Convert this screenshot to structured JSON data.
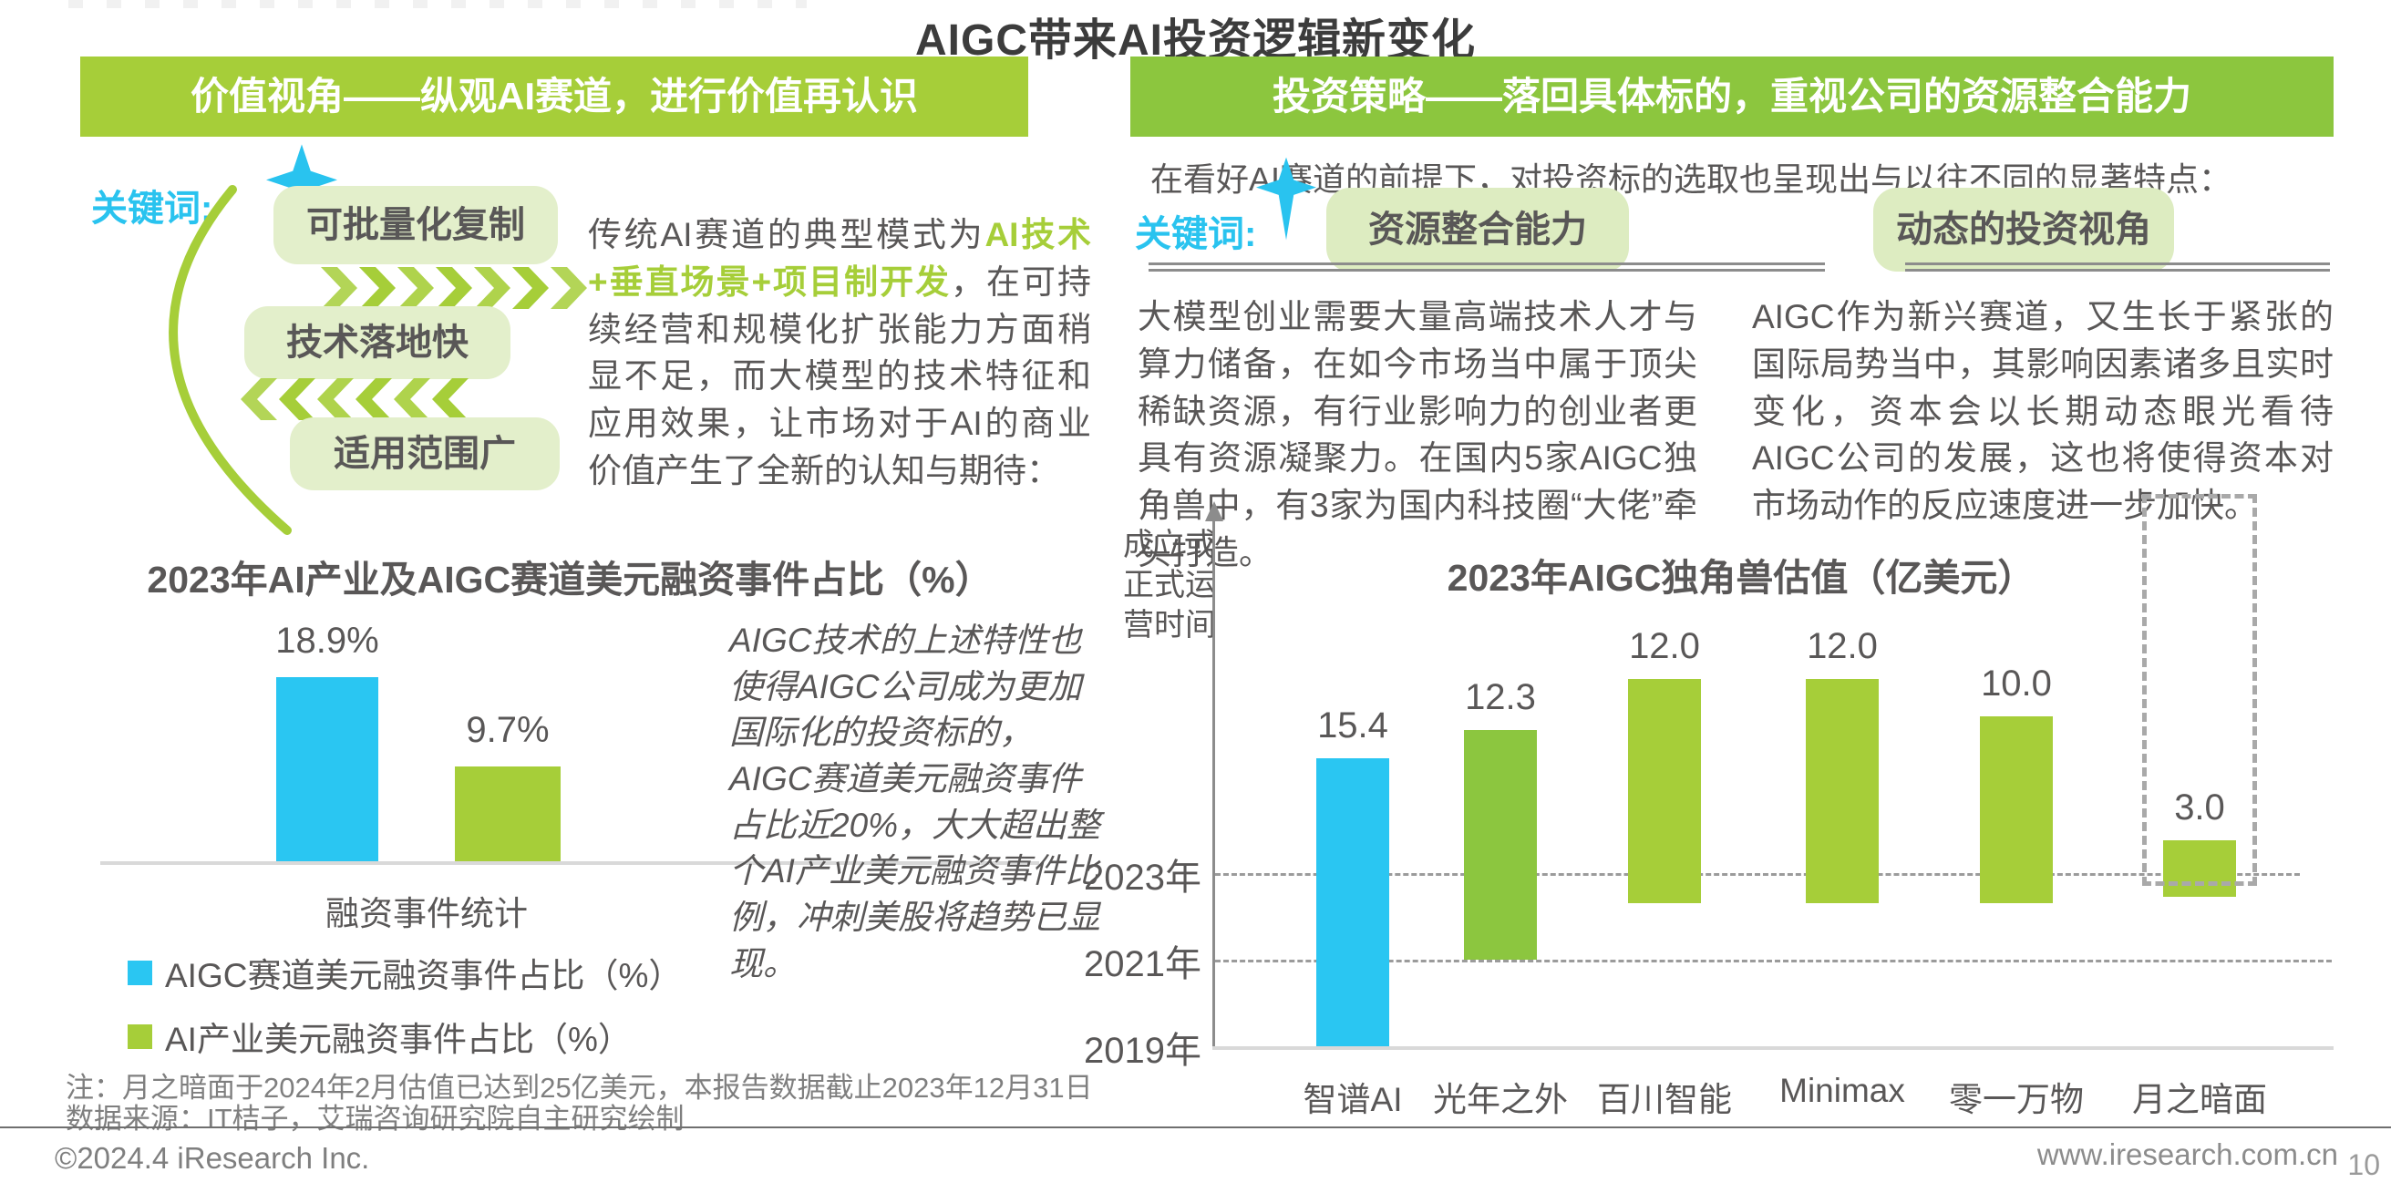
{
  "page": {
    "title": "AIGC带来AI投资逻辑新变化",
    "footer": {
      "note1": "注：月之暗面于2024年2月估值已达到25亿美元，本报告数据截止2023年12月31日",
      "note2": "数据来源：IT桔子，艾瑞咨询研究院自主研究绘制",
      "copyright": "©2024.4 iResearch Inc.",
      "website": "www.iresearch.com.cn",
      "page_number": "10"
    }
  },
  "left": {
    "header": "价值视角——纵观AI赛道，进行价值再认识",
    "keyword_label": "关键词:",
    "keywords": [
      "可批量化复制",
      "技术落地快",
      "适用范围广"
    ],
    "paragraph_prefix": "传统AI赛道的典型模式为",
    "paragraph_highlight": "AI技术+垂直场景+项目制开发",
    "paragraph_suffix": "，在可持续经营和规模化扩张能力方面稍显不足，而大模型的技术特征和应用效果，让市场对于AI的商业价值产生了全新的认知与期待：",
    "italic_note": "AIGC技术的上述特性也使得AIGC公司成为更加国际化的投资标的，AIGC赛道美元融资事件占比近20%，大大超出整个AI产业美元融资事件比例，冲刺美股将趋势已显现。"
  },
  "right": {
    "header": "投资策略——落回具体标的，重视公司的资源整合能力",
    "subtitle": "在看好AI赛道的前提下，对投资标的选取也呈现出与以往不同的显著特点：",
    "keyword_label": "关键词:",
    "keywords": [
      "资源整合能力",
      "动态的投资视角"
    ],
    "paragraph1": "大模型创业需要大量高端技术人才与算力储备，在如今市场当中属于顶尖稀缺资源，有行业影响力的创业者更具有资源凝聚力。在国内5家AIGC独角兽中，有3家为国内科技圈“大佬”牵头打造。",
    "paragraph2": "AIGC作为新兴赛道，又生长于紧张的国际局势当中，其影响因素诸多且实时变化，资本会以长期动态眼光看待AIGC公司的发展，这也将使得资本对市场动作的反应速度进一步加快。"
  },
  "chart_data": [
    {
      "type": "bar",
      "title": "2023年AI产业及AIGC赛道美元融资事件占比（%）",
      "categories": [
        "AIGC赛道美元融资事件占比（%）",
        "AI产业美元融资事件占比（%）"
      ],
      "values": [
        18.9,
        9.7
      ],
      "value_labels": [
        "18.9%",
        "9.7%"
      ],
      "bar_colors": [
        "#2ac6f2",
        "#a6ce39"
      ],
      "xlabel": "融资事件统计",
      "ylim": [
        0,
        25
      ],
      "grid": false,
      "legend_position": "bottom-left"
    },
    {
      "type": "bar",
      "title": "2023年AIGC独角兽估值（亿美元）",
      "ylabel": "成立或正式运营时间",
      "categories": [
        "智谱AI",
        "光年之外",
        "百川智能",
        "Minimax",
        "零一万物",
        "月之暗面"
      ],
      "values": [
        15.4,
        12.3,
        12.0,
        12.0,
        10.0,
        3.0
      ],
      "value_labels": [
        "15.4",
        "12.3",
        "12.0",
        "12.0",
        "10.0",
        "3.0"
      ],
      "founded_year": [
        2019,
        2021,
        2022.3,
        2022.3,
        2022.3,
        2022.45
      ],
      "bar_colors": [
        "#2ac6f2",
        "#8cc63f",
        "#a6ce39",
        "#a6ce39",
        "#a6ce39",
        "#a6ce39"
      ],
      "year_ticks": [
        {
          "label": "2023年",
          "year": 2023
        },
        {
          "label": "2021年",
          "year": 2021
        },
        {
          "label": "2019年",
          "year": 2019
        }
      ],
      "highlight": {
        "category": "月之暗面",
        "style": "dashed-box"
      },
      "grid": "dashed-horizontal",
      "note": "bar bottom anchored at founding time, bar length proportional to valuation"
    }
  ],
  "colors": {
    "accent_green": "#a6ce39",
    "accent_green_dark": "#8cc63e",
    "accent_cyan": "#29c3ef",
    "box_fill": "#e3efcb",
    "text_gray": "#595757"
  }
}
